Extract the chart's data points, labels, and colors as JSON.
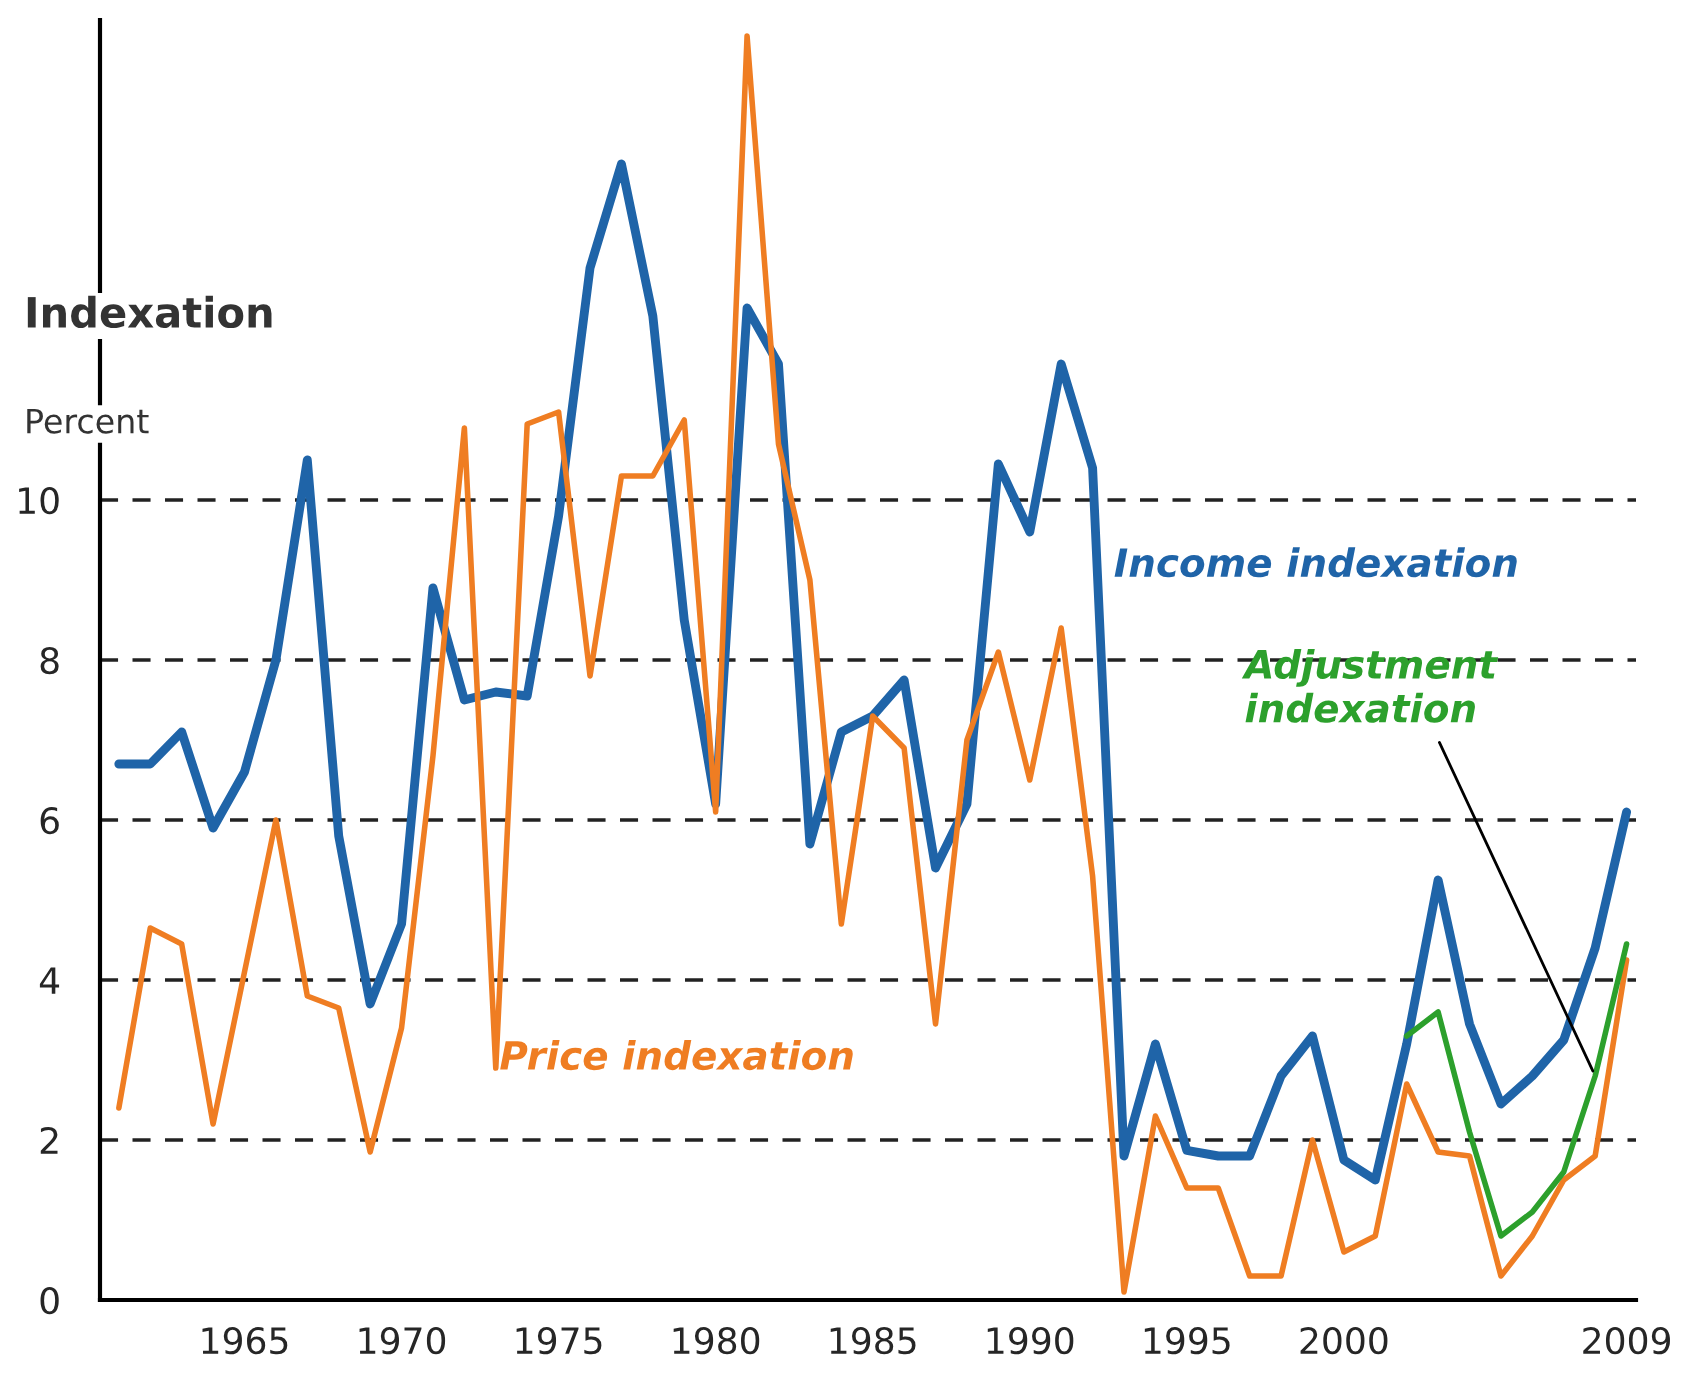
{
  "chart_data": {
    "type": "line",
    "title": "Indexation",
    "ylabel": "Percent",
    "x": [
      1961,
      1962,
      1963,
      1964,
      1965,
      1966,
      1967,
      1968,
      1969,
      1970,
      1971,
      1972,
      1973,
      1974,
      1975,
      1976,
      1977,
      1978,
      1979,
      1980,
      1981,
      1982,
      1983,
      1984,
      1985,
      1986,
      1987,
      1988,
      1989,
      1990,
      1991,
      1992,
      1993,
      1994,
      1995,
      1996,
      1997,
      1998,
      1999,
      2000,
      2001,
      2002,
      2003,
      2004,
      2005,
      2006,
      2007,
      2008,
      2009
    ],
    "series": [
      {
        "name": "Income indexation",
        "color": "#1f64a8",
        "values": [
          6.7,
          6.7,
          7.1,
          5.9,
          6.6,
          8.0,
          10.5,
          5.8,
          3.7,
          4.7,
          8.9,
          7.5,
          7.6,
          7.55,
          9.8,
          12.9,
          14.2,
          12.3,
          8.5,
          6.2,
          12.4,
          11.7,
          5.7,
          7.1,
          7.3,
          7.75,
          5.4,
          6.2,
          10.45,
          9.6,
          11.7,
          10.4,
          1.8,
          3.2,
          1.87,
          1.8,
          1.8,
          2.8,
          3.3,
          1.75,
          1.5,
          3.2,
          5.25,
          3.45,
          2.45,
          2.8,
          3.25,
          4.4,
          6.1
        ]
      },
      {
        "name": "Price indexation",
        "color": "#ef7d22",
        "values": [
          2.4,
          4.65,
          4.45,
          2.2,
          4.1,
          6.0,
          3.8,
          3.65,
          1.85,
          3.4,
          6.8,
          10.9,
          2.9,
          10.95,
          11.1,
          7.8,
          10.3,
          10.3,
          11.0,
          6.1,
          15.8,
          10.7,
          9.0,
          4.7,
          7.3,
          6.9,
          3.45,
          7.0,
          8.1,
          6.5,
          8.4,
          5.3,
          0.1,
          2.3,
          1.4,
          1.4,
          0.3,
          0.3,
          2.0,
          0.6,
          0.8,
          2.7,
          1.85,
          1.8,
          0.3,
          0.8,
          1.5,
          1.8,
          4.25
        ]
      },
      {
        "name": "Adjustment indexation",
        "color": "#2ca02c",
        "x": [
          2002,
          2003,
          2004,
          2005,
          2006,
          2007,
          2008,
          2009
        ],
        "values": [
          3.3,
          3.6,
          2.1,
          0.8,
          1.1,
          1.6,
          2.8,
          4.45
        ]
      }
    ],
    "xlim": [
      1960.4,
      2009.3
    ],
    "xticks": [
      1965,
      1970,
      1975,
      1980,
      1985,
      1990,
      1995,
      2000,
      2009
    ],
    "ylim": [
      0,
      16
    ],
    "yticks": [
      0,
      2,
      4,
      6,
      8,
      10
    ],
    "grid": "y",
    "legend": false
  }
}
